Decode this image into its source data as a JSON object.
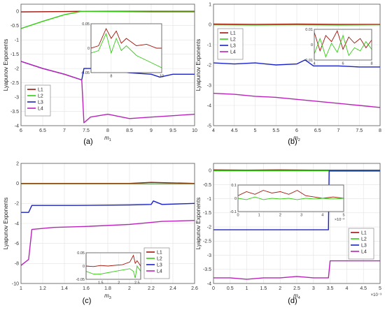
{
  "figure": {
    "panels": [
      {
        "panel_label": "(a)",
        "xlabel": "m",
        "xlabel_sub": "1",
        "ylabel": "Lyapunov Exponents",
        "xlim": [
          6,
          10
        ],
        "ylim": [
          -4,
          0.25
        ],
        "xticks": [
          6,
          6.5,
          7,
          7.5,
          8,
          8.5,
          9,
          9.5,
          10
        ],
        "xtick_labels": [
          "6",
          "6.5",
          "7",
          "7.5",
          "8",
          "8.5",
          "9",
          "9.5",
          "10"
        ],
        "yticks": [
          0,
          -0.5,
          -1,
          -1.5,
          -2,
          -2.5,
          -3,
          -3.5,
          -4
        ],
        "ytick_labels": [
          "0",
          "-0.5",
          "-1",
          "-1.5",
          "-2",
          "-2.5",
          "-3",
          "-3.5",
          "-4"
        ],
        "x_exponent": "",
        "legend": [
          "L1",
          "L2",
          "L3",
          "L4"
        ],
        "legend_position": "bottom-left",
        "series": [
          {
            "name": "L1",
            "x": [
              6,
              7,
              7.4,
              8,
              9,
              10
            ],
            "y": [
              -0.02,
              -0.01,
              0.0,
              0.0,
              0.0,
              0.0
            ]
          },
          {
            "name": "L2",
            "x": [
              6,
              6.5,
              7,
              7.4,
              8,
              9,
              10
            ],
            "y": [
              -0.6,
              -0.35,
              -0.12,
              0.0,
              -0.01,
              -0.02,
              -0.02
            ]
          },
          {
            "name": "L3",
            "x": [
              6,
              6.5,
              7,
              7.4,
              7.45,
              7.6,
              8,
              8.5,
              9,
              9.2,
              9.5,
              10
            ],
            "y": [
              -1.75,
              -2.0,
              -2.2,
              -2.4,
              -2.0,
              -2.0,
              -2.05,
              -2.15,
              -2.2,
              -2.3,
              -2.2,
              -2.2
            ]
          },
          {
            "name": "L4",
            "x": [
              6,
              6.5,
              7,
              7.4,
              7.45,
              7.6,
              8,
              8.5,
              9,
              9.5,
              10
            ],
            "y": [
              -1.75,
              -2.0,
              -2.2,
              -2.4,
              -3.9,
              -3.7,
              -3.6,
              -3.75,
              -3.7,
              -3.65,
              -3.6
            ]
          }
        ],
        "inset": {
          "xlim": [
            7.2,
            10
          ],
          "ylim": [
            -0.05,
            0.05
          ],
          "xticks": [
            8,
            10
          ],
          "xtick_labels": [
            "8",
            "10"
          ],
          "yticks": [
            0.05,
            0,
            -0.05
          ],
          "ytick_labels": [
            "0.05",
            "0",
            "-0.05"
          ],
          "series": [
            {
              "name": "L1",
              "x": [
                7.2,
                7.5,
                7.8,
                8.0,
                8.2,
                8.4,
                8.6,
                9.0,
                9.4,
                9.8,
                10
              ],
              "y": [
                0.0,
                0.005,
                0.04,
                0.02,
                0.035,
                0.01,
                0.02,
                0.005,
                0.008,
                0.0,
                0.0
              ]
            },
            {
              "name": "L2",
              "x": [
                7.2,
                7.5,
                7.8,
                8.0,
                8.2,
                8.4,
                8.6,
                9.0,
                9.4,
                9.8,
                10
              ],
              "y": [
                -0.01,
                -0.005,
                0.03,
                -0.01,
                0.02,
                -0.005,
                0.005,
                -0.015,
                -0.025,
                -0.035,
                -0.04
              ]
            }
          ]
        }
      },
      {
        "panel_label": "(b)",
        "xlabel": "m",
        "xlabel_sub": "2",
        "ylabel": "Lyapunov Exponents",
        "xlim": [
          4,
          8
        ],
        "ylim": [
          -5,
          1
        ],
        "xticks": [
          4,
          4.5,
          5,
          5.5,
          6,
          6.5,
          7,
          7.5,
          8
        ],
        "xtick_labels": [
          "4",
          "4.5",
          "5",
          "5.5",
          "6",
          "6.5",
          "7",
          "7.5",
          "8"
        ],
        "yticks": [
          1,
          0,
          -1,
          -2,
          -3,
          -4,
          -5
        ],
        "ytick_labels": [
          "1",
          "0",
          "-1",
          "-2",
          "-3",
          "-4",
          "-5"
        ],
        "x_exponent": "",
        "legend": [
          "L1",
          "L2",
          "L3",
          "L4"
        ],
        "legend_position": "top-left",
        "series": [
          {
            "name": "L1",
            "x": [
              4,
              5,
              6,
              7,
              8
            ],
            "y": [
              0.02,
              0.0,
              0.02,
              0.0,
              0.0
            ]
          },
          {
            "name": "L2",
            "x": [
              4,
              5,
              6,
              7,
              8
            ],
            "y": [
              -0.02,
              -0.03,
              -0.02,
              -0.03,
              -0.02
            ]
          },
          {
            "name": "L3",
            "x": [
              4,
              4.5,
              5,
              5.5,
              6,
              6.2,
              6.4,
              7,
              7.5,
              8
            ],
            "y": [
              -1.9,
              -1.95,
              -1.9,
              -2.0,
              -1.95,
              -1.75,
              -2.05,
              -2.05,
              -2.1,
              -2.1
            ]
          },
          {
            "name": "L4",
            "x": [
              4,
              4.5,
              5,
              5.5,
              6,
              6.5,
              7,
              7.5,
              8
            ],
            "y": [
              -3.4,
              -3.45,
              -3.55,
              -3.6,
              -3.7,
              -3.8,
              -3.9,
              -4.0,
              -4.1
            ]
          }
        ],
        "inset": {
          "xlim": [
            4,
            8
          ],
          "ylim": [
            -0.01,
            0.01
          ],
          "xticks": [
            4,
            6,
            8
          ],
          "xtick_labels": [
            "4",
            "6",
            "8"
          ],
          "yticks": [
            0.01,
            0,
            -0.01
          ],
          "ytick_labels": [
            "0.01",
            "0",
            "-0.01"
          ],
          "series": [
            {
              "name": "L1",
              "x": [
                4,
                4.4,
                4.8,
                5.2,
                5.6,
                6.0,
                6.4,
                6.8,
                7.2,
                7.6,
                8
              ],
              "y": [
                0.008,
                -0.004,
                0.006,
                0.002,
                0.009,
                -0.003,
                0.005,
                0.001,
                0.004,
                -0.002,
                0.003
              ]
            },
            {
              "name": "L2",
              "x": [
                4,
                4.4,
                4.8,
                5.2,
                5.6,
                6.0,
                6.4,
                6.8,
                7.2,
                7.6,
                8
              ],
              "y": [
                -0.006,
                0.004,
                -0.008,
                0.001,
                -0.005,
                0.006,
                -0.007,
                -0.002,
                -0.004,
                0.002,
                -0.003
              ]
            }
          ]
        }
      },
      {
        "panel_label": "(c)",
        "xlabel": "m",
        "xlabel_sub": "3",
        "ylabel": "Lyapunov Exponents",
        "xlim": [
          1,
          2.6
        ],
        "ylim": [
          -10,
          2
        ],
        "xticks": [
          1,
          1.2,
          1.4,
          1.6,
          1.8,
          2,
          2.2,
          2.4,
          2.6
        ],
        "xtick_labels": [
          "1",
          "1.2",
          "1.4",
          "1.6",
          "1.8",
          "2",
          "2.2",
          "2.4",
          "2.6"
        ],
        "yticks": [
          2,
          0,
          -2,
          -4,
          -6,
          -8,
          -10
        ],
        "ytick_labels": [
          "2",
          "0",
          "-2",
          "-4",
          "-6",
          "-8",
          "-10"
        ],
        "x_exponent": "",
        "legend": [
          "L1",
          "L2",
          "L3",
          "L4"
        ],
        "legend_position": "bottom-right",
        "series": [
          {
            "name": "L1",
            "x": [
              1,
              1.5,
              2,
              2.2,
              2.6
            ],
            "y": [
              0.0,
              0.0,
              0.0,
              0.1,
              0.0
            ]
          },
          {
            "name": "L2",
            "x": [
              1,
              1.5,
              2,
              2.6
            ],
            "y": [
              -0.05,
              -0.05,
              -0.05,
              -0.05
            ]
          },
          {
            "name": "L3",
            "x": [
              1,
              1.07,
              1.1,
              1.5,
              2.0,
              2.2,
              2.22,
              2.3,
              2.6
            ],
            "y": [
              -2.9,
              -2.9,
              -2.2,
              -2.2,
              -2.15,
              -2.1,
              -1.75,
              -2.1,
              -2.0
            ]
          },
          {
            "name": "L4",
            "x": [
              1,
              1.07,
              1.1,
              1.3,
              1.6,
              2.0,
              2.3,
              2.6
            ],
            "y": [
              -8.2,
              -7.6,
              -4.6,
              -4.4,
              -4.3,
              -4.1,
              -3.8,
              -3.7
            ]
          }
        ],
        "inset": {
          "xlim": [
            1.1,
            2.6
          ],
          "ylim": [
            -0.05,
            0.05
          ],
          "xticks": [
            1.5,
            2,
            2.5
          ],
          "xtick_labels": [
            "1.5",
            "2",
            "2.5"
          ],
          "yticks": [
            0.05,
            0,
            -0.05
          ],
          "ytick_labels": [
            "0.05",
            "0",
            "-0.05"
          ],
          "series": [
            {
              "name": "L1",
              "x": [
                1.1,
                1.3,
                1.5,
                1.7,
                1.9,
                2.1,
                2.3,
                2.4,
                2.45,
                2.5,
                2.6
              ],
              "y": [
                0.0,
                -0.002,
                0.002,
                0.0,
                0.003,
                0.005,
                0.015,
                0.04,
                0.01,
                0.02,
                0.0
              ]
            },
            {
              "name": "L2",
              "x": [
                1.1,
                1.3,
                1.5,
                1.7,
                1.9,
                2.1,
                2.3,
                2.4,
                2.45,
                2.5,
                2.6
              ],
              "y": [
                -0.02,
                -0.03,
                -0.03,
                -0.025,
                -0.02,
                -0.015,
                -0.01,
                -0.02,
                -0.045,
                0.0,
                -0.02
              ]
            }
          ]
        }
      },
      {
        "panel_label": "(d)",
        "xlabel": "m",
        "xlabel_sub": "4",
        "ylabel": "Lyapunov Exponents",
        "xlim": [
          0,
          5
        ],
        "ylim": [
          -4,
          0.25
        ],
        "xticks": [
          0,
          0.5,
          1,
          1.5,
          2,
          2.5,
          3,
          3.5,
          4,
          4.5,
          5
        ],
        "xtick_labels": [
          "0",
          "0.5",
          "1",
          "1.5",
          "2",
          "2.5",
          "3",
          "3.5",
          "4",
          "4.5",
          "5"
        ],
        "yticks": [
          0,
          -0.5,
          -1,
          -1.5,
          -2,
          -2.5,
          -3,
          -3.5,
          -4
        ],
        "ytick_labels": [
          "0",
          "-0.5",
          "-1",
          "-1.5",
          "-2",
          "-2.5",
          "-3",
          "-3.5",
          "-4"
        ],
        "x_exponent": "×10⁻³",
        "legend": [
          "L1",
          "L2",
          "L3",
          "L4"
        ],
        "legend_position": "right",
        "series": [
          {
            "name": "L1",
            "x": [
              0,
              1,
              2,
              3,
              4,
              5
            ],
            "y": [
              0.02,
              0.01,
              0.02,
              0.01,
              0.01,
              0.01
            ]
          },
          {
            "name": "L2",
            "x": [
              0,
              1,
              2,
              3,
              4,
              5
            ],
            "y": [
              -0.01,
              -0.01,
              -0.01,
              -0.01,
              -0.01,
              -0.01
            ]
          },
          {
            "name": "L3",
            "x": [
              0,
              1,
              2,
              3,
              3.45,
              3.47,
              4,
              5
            ],
            "y": [
              -2.1,
              -2.1,
              -2.1,
              -2.1,
              -2.1,
              -0.02,
              -0.02,
              -0.02
            ]
          },
          {
            "name": "L4",
            "x": [
              0,
              0.5,
              1,
              1.5,
              2,
              2.5,
              3,
              3.45,
              3.5,
              4,
              5
            ],
            "y": [
              -3.8,
              -3.8,
              -3.85,
              -3.8,
              -3.8,
              -3.75,
              -3.8,
              -3.8,
              -3.2,
              -3.2,
              -3.2
            ]
          }
        ],
        "inset": {
          "xlim": [
            0,
            5
          ],
          "ylim": [
            -0.1,
            0.1
          ],
          "xticks": [
            0,
            1,
            2,
            3,
            4,
            5
          ],
          "xtick_labels": [
            "0",
            "1",
            "2",
            "3",
            "4",
            "5"
          ],
          "yticks": [
            0.1,
            0,
            -0.1
          ],
          "ytick_labels": [
            "0.1",
            "0",
            "-0.1"
          ],
          "x_exponent": "×10⁻³",
          "series": [
            {
              "name": "L1",
              "x": [
                0,
                0.4,
                0.8,
                1.2,
                1.6,
                2.0,
                2.4,
                2.8,
                3.2,
                3.6,
                4.0,
                4.5,
                5
              ],
              "y": [
                0.02,
                0.05,
                0.03,
                0.06,
                0.04,
                0.05,
                0.03,
                0.06,
                0.02,
                0.01,
                0.0,
                0.01,
                0.0
              ]
            },
            {
              "name": "L2",
              "x": [
                0,
                0.4,
                0.8,
                1.2,
                1.6,
                2.0,
                2.4,
                2.8,
                3.2,
                3.6,
                4.0,
                4.5,
                5
              ],
              "y": [
                0.0,
                -0.01,
                0.01,
                -0.01,
                0.0,
                -0.005,
                0.0,
                -0.01,
                0.0,
                -0.005,
                0.0,
                -0.005,
                0.0
              ]
            }
          ]
        }
      }
    ]
  },
  "chart_data": [
    {
      "type": "line",
      "panel": "(a)",
      "xlabel": "m1",
      "ylabel": "Lyapunov Exponents",
      "xlim": [
        6,
        10
      ],
      "ylim": [
        -4,
        0.25
      ]
    },
    {
      "type": "line",
      "panel": "(b)",
      "xlabel": "m2",
      "ylabel": "Lyapunov Exponents",
      "xlim": [
        4,
        8
      ],
      "ylim": [
        -5,
        1
      ]
    },
    {
      "type": "line",
      "panel": "(c)",
      "xlabel": "m3",
      "ylabel": "Lyapunov Exponents",
      "xlim": [
        1,
        2.6
      ],
      "ylim": [
        -10,
        2
      ]
    },
    {
      "type": "line",
      "panel": "(d)",
      "xlabel": "m4",
      "ylabel": "Lyapunov Exponents",
      "xlim": [
        0,
        5
      ],
      "ylim": [
        -4,
        0.25
      ],
      "x_scale_note": "×10⁻³"
    }
  ],
  "colors": {
    "L1": "#a0140a",
    "L2": "#33cc11",
    "L3": "#1a22c8",
    "L4": "#bb22bb",
    "grid": "#e2e2e2",
    "axis": "#555555"
  }
}
